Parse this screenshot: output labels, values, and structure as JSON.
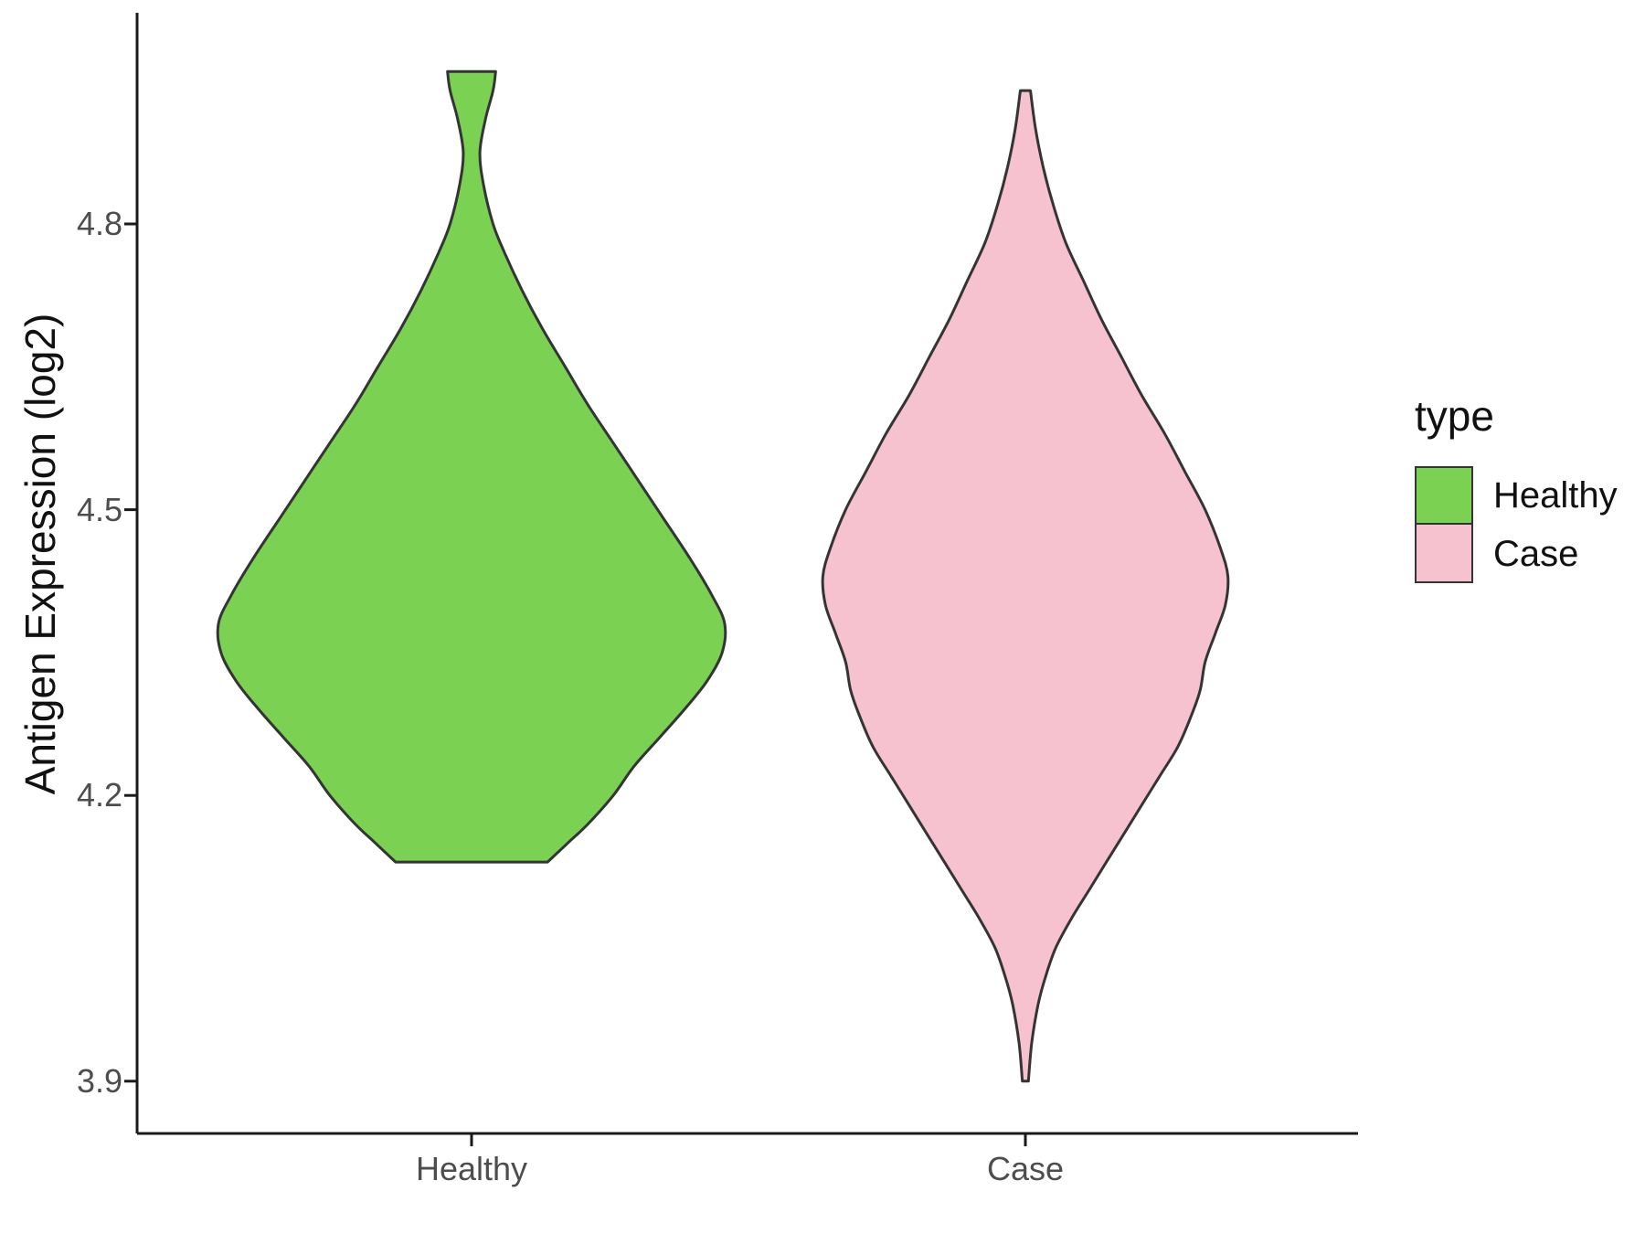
{
  "chart_data": {
    "type": "violin",
    "title": "",
    "xlabel": "",
    "ylabel": "Antigen Expression (log2)",
    "categories": [
      "Healthy",
      "Case"
    ],
    "y_ticks": [
      4.8,
      4.5,
      4.2,
      3.9
    ],
    "y_tick_labels": [
      "4.8",
      "4.5",
      "4.2",
      "3.9"
    ],
    "ylim": [
      3.82,
      5.02
    ],
    "grid": false,
    "legend_position": "right",
    "outline_color": "#343434",
    "legend": {
      "title": "type",
      "entries": [
        {
          "label": "Healthy",
          "color": "#7AD152"
        },
        {
          "label": "Case",
          "color": "#F6C2CF"
        }
      ]
    },
    "series": [
      {
        "name": "Healthy",
        "color": "#7AD152",
        "flat_top": true,
        "flat_bottom": true,
        "profile": [
          [
            4.96,
            0.095
          ],
          [
            4.94,
            0.085
          ],
          [
            4.91,
            0.055
          ],
          [
            4.875,
            0.033
          ],
          [
            4.84,
            0.048
          ],
          [
            4.8,
            0.085
          ],
          [
            4.77,
            0.13
          ],
          [
            4.73,
            0.2
          ],
          [
            4.69,
            0.28
          ],
          [
            4.65,
            0.37
          ],
          [
            4.61,
            0.46
          ],
          [
            4.57,
            0.56
          ],
          [
            4.53,
            0.66
          ],
          [
            4.49,
            0.76
          ],
          [
            4.45,
            0.86
          ],
          [
            4.41,
            0.95
          ],
          [
            4.38,
            1.0
          ],
          [
            4.35,
            0.99
          ],
          [
            4.32,
            0.93
          ],
          [
            4.29,
            0.84
          ],
          [
            4.26,
            0.74
          ],
          [
            4.23,
            0.64
          ],
          [
            4.2,
            0.56
          ],
          [
            4.17,
            0.46
          ],
          [
            4.15,
            0.38
          ],
          [
            4.13,
            0.3
          ]
        ]
      },
      {
        "name": "Case",
        "color": "#F6C2CF",
        "flat_top": false,
        "flat_bottom": false,
        "profile": [
          [
            4.94,
            0.02
          ],
          [
            4.9,
            0.04
          ],
          [
            4.86,
            0.07
          ],
          [
            4.82,
            0.11
          ],
          [
            4.78,
            0.16
          ],
          [
            4.74,
            0.23
          ],
          [
            4.7,
            0.3
          ],
          [
            4.66,
            0.38
          ],
          [
            4.62,
            0.46
          ],
          [
            4.58,
            0.55
          ],
          [
            4.54,
            0.63
          ],
          [
            4.5,
            0.71
          ],
          [
            4.46,
            0.77
          ],
          [
            4.43,
            0.8
          ],
          [
            4.4,
            0.79
          ],
          [
            4.37,
            0.75
          ],
          [
            4.34,
            0.71
          ],
          [
            4.31,
            0.69
          ],
          [
            4.28,
            0.65
          ],
          [
            4.25,
            0.6
          ],
          [
            4.22,
            0.53
          ],
          [
            4.19,
            0.46
          ],
          [
            4.16,
            0.39
          ],
          [
            4.13,
            0.32
          ],
          [
            4.1,
            0.25
          ],
          [
            4.07,
            0.18
          ],
          [
            4.04,
            0.12
          ],
          [
            4.01,
            0.08
          ],
          [
            3.98,
            0.05
          ],
          [
            3.94,
            0.025
          ],
          [
            3.9,
            0.012
          ]
        ]
      }
    ]
  }
}
